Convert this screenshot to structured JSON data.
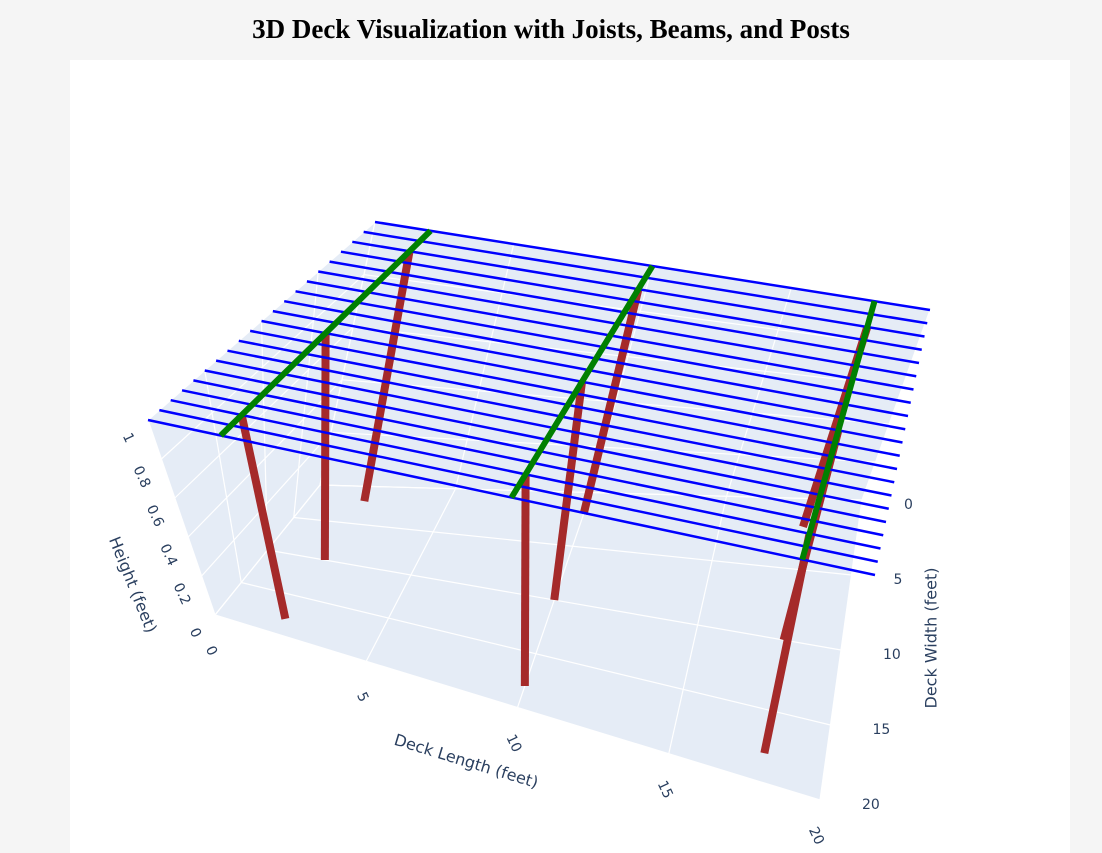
{
  "chart_data": {
    "type": "line3d",
    "title": "3D Deck Visualization with Joists, Beams, and Posts",
    "xaxis_title": "Deck Length (feet)",
    "yaxis_title": "Deck Width (feet)",
    "zaxis_title": "Height (feet)",
    "xlim": [
      0,
      20
    ],
    "ylim": [
      0,
      20
    ],
    "zlim": [
      0,
      1
    ],
    "xticks": [
      0,
      5,
      10,
      15,
      20
    ],
    "yticks": [
      0,
      5,
      10,
      15,
      20
    ],
    "zticks": [
      0,
      0.2,
      0.4,
      0.6,
      0.8,
      1
    ],
    "grid": true,
    "series": [
      {
        "color": "#a52a2a",
        "width": 8,
        "x": [
          2,
          2
        ],
        "y": [
          2,
          2
        ],
        "z": [
          0,
          1
        ]
      },
      {
        "color": "#a52a2a",
        "width": 8,
        "x": [
          2,
          2
        ],
        "y": [
          10,
          10
        ],
        "z": [
          0,
          1
        ]
      },
      {
        "color": "#a52a2a",
        "width": 8,
        "x": [
          2,
          2
        ],
        "y": [
          18,
          18
        ],
        "z": [
          0,
          1
        ]
      },
      {
        "color": "#a52a2a",
        "width": 8,
        "x": [
          10,
          10
        ],
        "y": [
          2,
          2
        ],
        "z": [
          0,
          1
        ]
      },
      {
        "color": "#a52a2a",
        "width": 8,
        "x": [
          10,
          10
        ],
        "y": [
          10,
          10
        ],
        "z": [
          0,
          1
        ]
      },
      {
        "color": "#a52a2a",
        "width": 8,
        "x": [
          10,
          10
        ],
        "y": [
          18,
          18
        ],
        "z": [
          0,
          1
        ]
      },
      {
        "color": "#a52a2a",
        "width": 8,
        "x": [
          18,
          18
        ],
        "y": [
          2,
          2
        ],
        "z": [
          0,
          1
        ]
      },
      {
        "color": "#a52a2a",
        "width": 8,
        "x": [
          18,
          18
        ],
        "y": [
          10,
          10
        ],
        "z": [
          0,
          1
        ]
      },
      {
        "color": "#a52a2a",
        "width": 8,
        "x": [
          18,
          18
        ],
        "y": [
          18,
          18
        ],
        "z": [
          0,
          1
        ]
      },
      {
        "color": "#0000ff",
        "width": 2.5,
        "x": [
          0,
          20
        ],
        "y": [
          0,
          0
        ],
        "z": [
          1,
          1
        ]
      },
      {
        "color": "#0000ff",
        "width": 2.5,
        "x": [
          0,
          20
        ],
        "y": [
          1,
          1
        ],
        "z": [
          1,
          1
        ]
      },
      {
        "color": "#0000ff",
        "width": 2.5,
        "x": [
          0,
          20
        ],
        "y": [
          2,
          2
        ],
        "z": [
          1,
          1
        ]
      },
      {
        "color": "#0000ff",
        "width": 2.5,
        "x": [
          0,
          20
        ],
        "y": [
          3,
          3
        ],
        "z": [
          1,
          1
        ]
      },
      {
        "color": "#0000ff",
        "width": 2.5,
        "x": [
          0,
          20
        ],
        "y": [
          4,
          4
        ],
        "z": [
          1,
          1
        ]
      },
      {
        "color": "#0000ff",
        "width": 2.5,
        "x": [
          0,
          20
        ],
        "y": [
          5,
          5
        ],
        "z": [
          1,
          1
        ]
      },
      {
        "color": "#0000ff",
        "width": 2.5,
        "x": [
          0,
          20
        ],
        "y": [
          6,
          6
        ],
        "z": [
          1,
          1
        ]
      },
      {
        "color": "#0000ff",
        "width": 2.5,
        "x": [
          0,
          20
        ],
        "y": [
          7,
          7
        ],
        "z": [
          1,
          1
        ]
      },
      {
        "color": "#0000ff",
        "width": 2.5,
        "x": [
          0,
          20
        ],
        "y": [
          8,
          8
        ],
        "z": [
          1,
          1
        ]
      },
      {
        "color": "#0000ff",
        "width": 2.5,
        "x": [
          0,
          20
        ],
        "y": [
          9,
          9
        ],
        "z": [
          1,
          1
        ]
      },
      {
        "color": "#0000ff",
        "width": 2.5,
        "x": [
          0,
          20
        ],
        "y": [
          10,
          10
        ],
        "z": [
          1,
          1
        ]
      },
      {
        "color": "#0000ff",
        "width": 2.5,
        "x": [
          0,
          20
        ],
        "y": [
          11,
          11
        ],
        "z": [
          1,
          1
        ]
      },
      {
        "color": "#0000ff",
        "width": 2.5,
        "x": [
          0,
          20
        ],
        "y": [
          12,
          12
        ],
        "z": [
          1,
          1
        ]
      },
      {
        "color": "#0000ff",
        "width": 2.5,
        "x": [
          0,
          20
        ],
        "y": [
          13,
          13
        ],
        "z": [
          1,
          1
        ]
      },
      {
        "color": "#0000ff",
        "width": 2.5,
        "x": [
          0,
          20
        ],
        "y": [
          14,
          14
        ],
        "z": [
          1,
          1
        ]
      },
      {
        "color": "#0000ff",
        "width": 2.5,
        "x": [
          0,
          20
        ],
        "y": [
          15,
          15
        ],
        "z": [
          1,
          1
        ]
      },
      {
        "color": "#0000ff",
        "width": 2.5,
        "x": [
          0,
          20
        ],
        "y": [
          16,
          16
        ],
        "z": [
          1,
          1
        ]
      },
      {
        "color": "#0000ff",
        "width": 2.5,
        "x": [
          0,
          20
        ],
        "y": [
          17,
          17
        ],
        "z": [
          1,
          1
        ]
      },
      {
        "color": "#0000ff",
        "width": 2.5,
        "x": [
          0,
          20
        ],
        "y": [
          18,
          18
        ],
        "z": [
          1,
          1
        ]
      },
      {
        "color": "#0000ff",
        "width": 2.5,
        "x": [
          0,
          20
        ],
        "y": [
          19,
          19
        ],
        "z": [
          1,
          1
        ]
      },
      {
        "color": "#0000ff",
        "width": 2.5,
        "x": [
          0,
          20
        ],
        "y": [
          20,
          20
        ],
        "z": [
          1,
          1
        ]
      },
      {
        "color": "#008000",
        "width": 6,
        "x": [
          2,
          2
        ],
        "y": [
          0,
          20
        ],
        "z": [
          1,
          1
        ]
      },
      {
        "color": "#008000",
        "width": 6,
        "x": [
          10,
          10
        ],
        "y": [
          0,
          20
        ],
        "z": [
          1,
          1
        ]
      },
      {
        "color": "#008000",
        "width": 6,
        "x": [
          18,
          18
        ],
        "y": [
          0,
          20
        ],
        "z": [
          1,
          1
        ]
      }
    ]
  }
}
